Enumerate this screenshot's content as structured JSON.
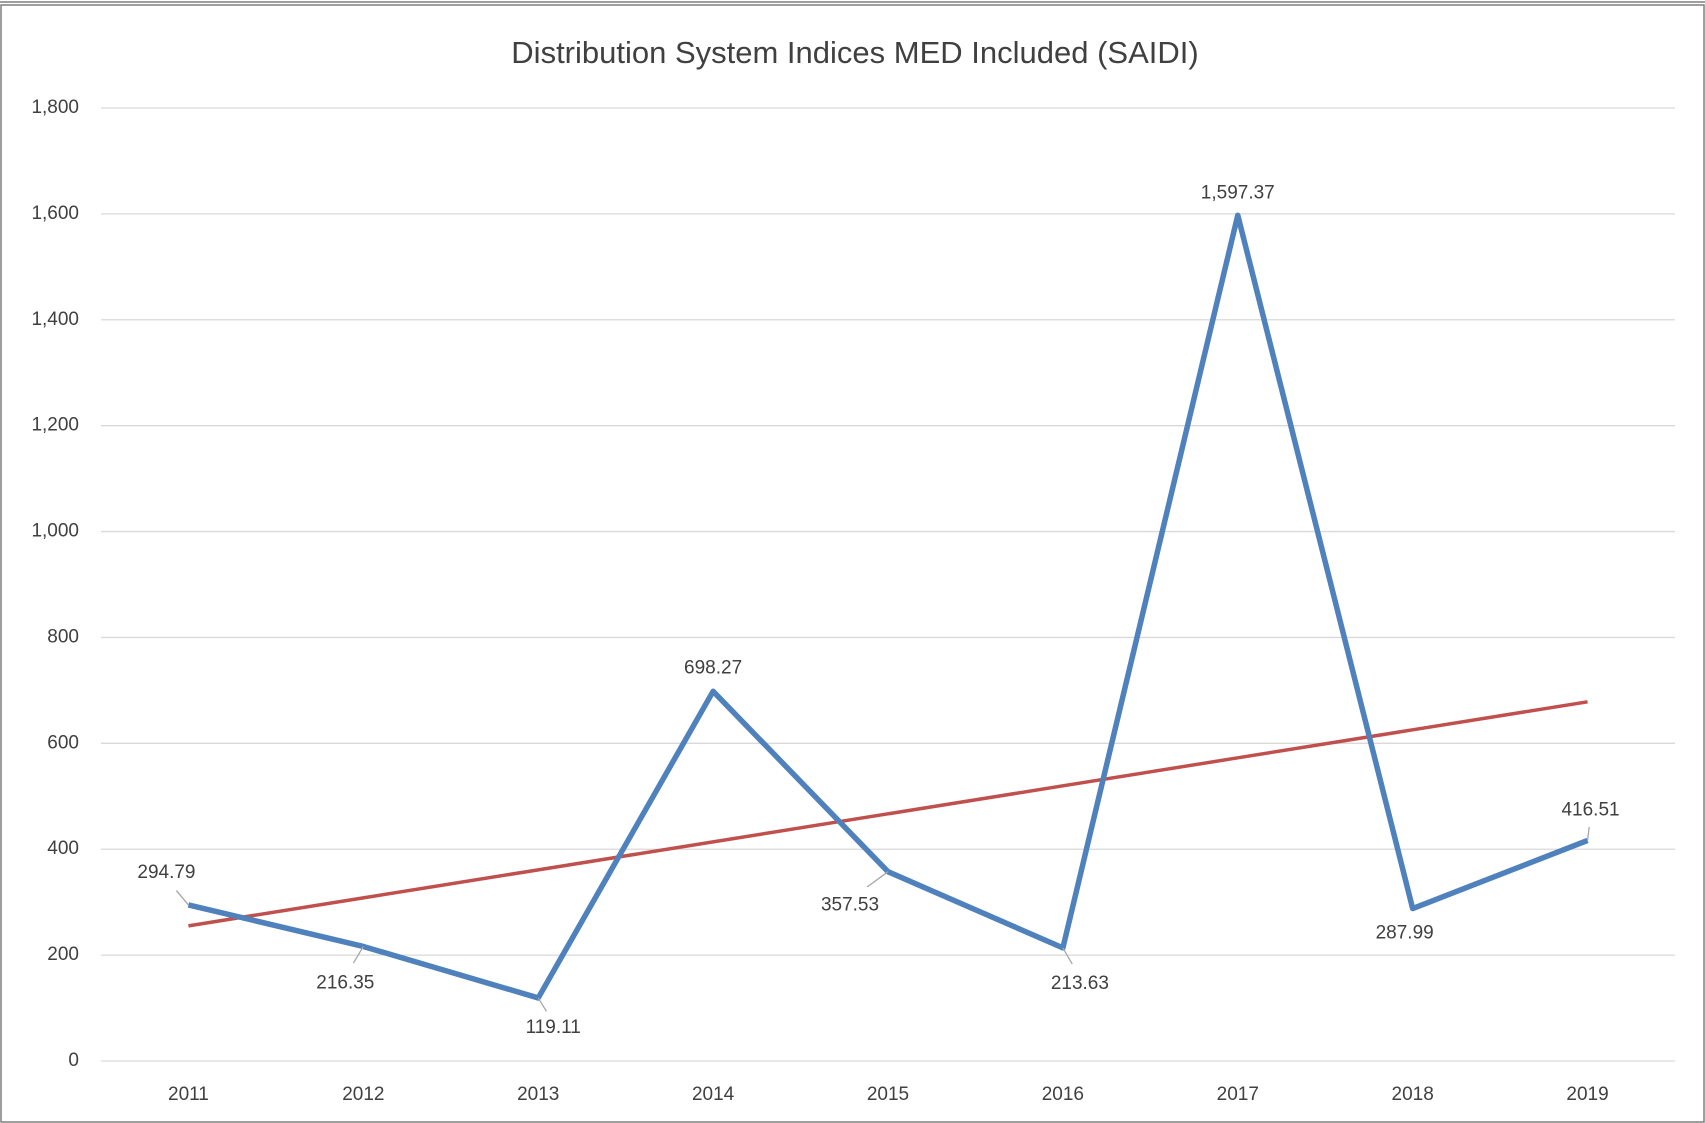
{
  "chart_data": {
    "type": "line",
    "title": "Distribution System Indices MED Included (SAIDI)",
    "categories": [
      "2011",
      "2012",
      "2013",
      "2014",
      "2015",
      "2016",
      "2017",
      "2018",
      "2019"
    ],
    "series": [
      {
        "color": "#4f81bd",
        "values": [
          294.79,
          216.35,
          119.11,
          698.27,
          357.53,
          213.63,
          1597.37,
          287.99,
          416.51
        ],
        "value_labels": [
          "294.79",
          "216.35",
          "119.11",
          "698.27",
          "357.53",
          "213.63",
          "1,597.37",
          "287.99",
          "416.51"
        ]
      },
      {
        "color": "#c0504d",
        "values": [
          255.26,
          308.15,
          361.05,
          413.94,
          466.84,
          519.73,
          572.63,
          625.52,
          678.42
        ]
      }
    ],
    "ylim": [
      0,
      1800
    ],
    "yticks": [
      0,
      200,
      400,
      600,
      800,
      {
        "value": 1000,
        "label": "1,000"
      },
      {
        "value": 1200,
        "label": "1,200"
      },
      {
        "value": 1400,
        "label": "1,400"
      },
      {
        "value": 1600,
        "label": "1,600"
      },
      {
        "value": 1800,
        "label": "1,800"
      }
    ],
    "grid": true
  }
}
